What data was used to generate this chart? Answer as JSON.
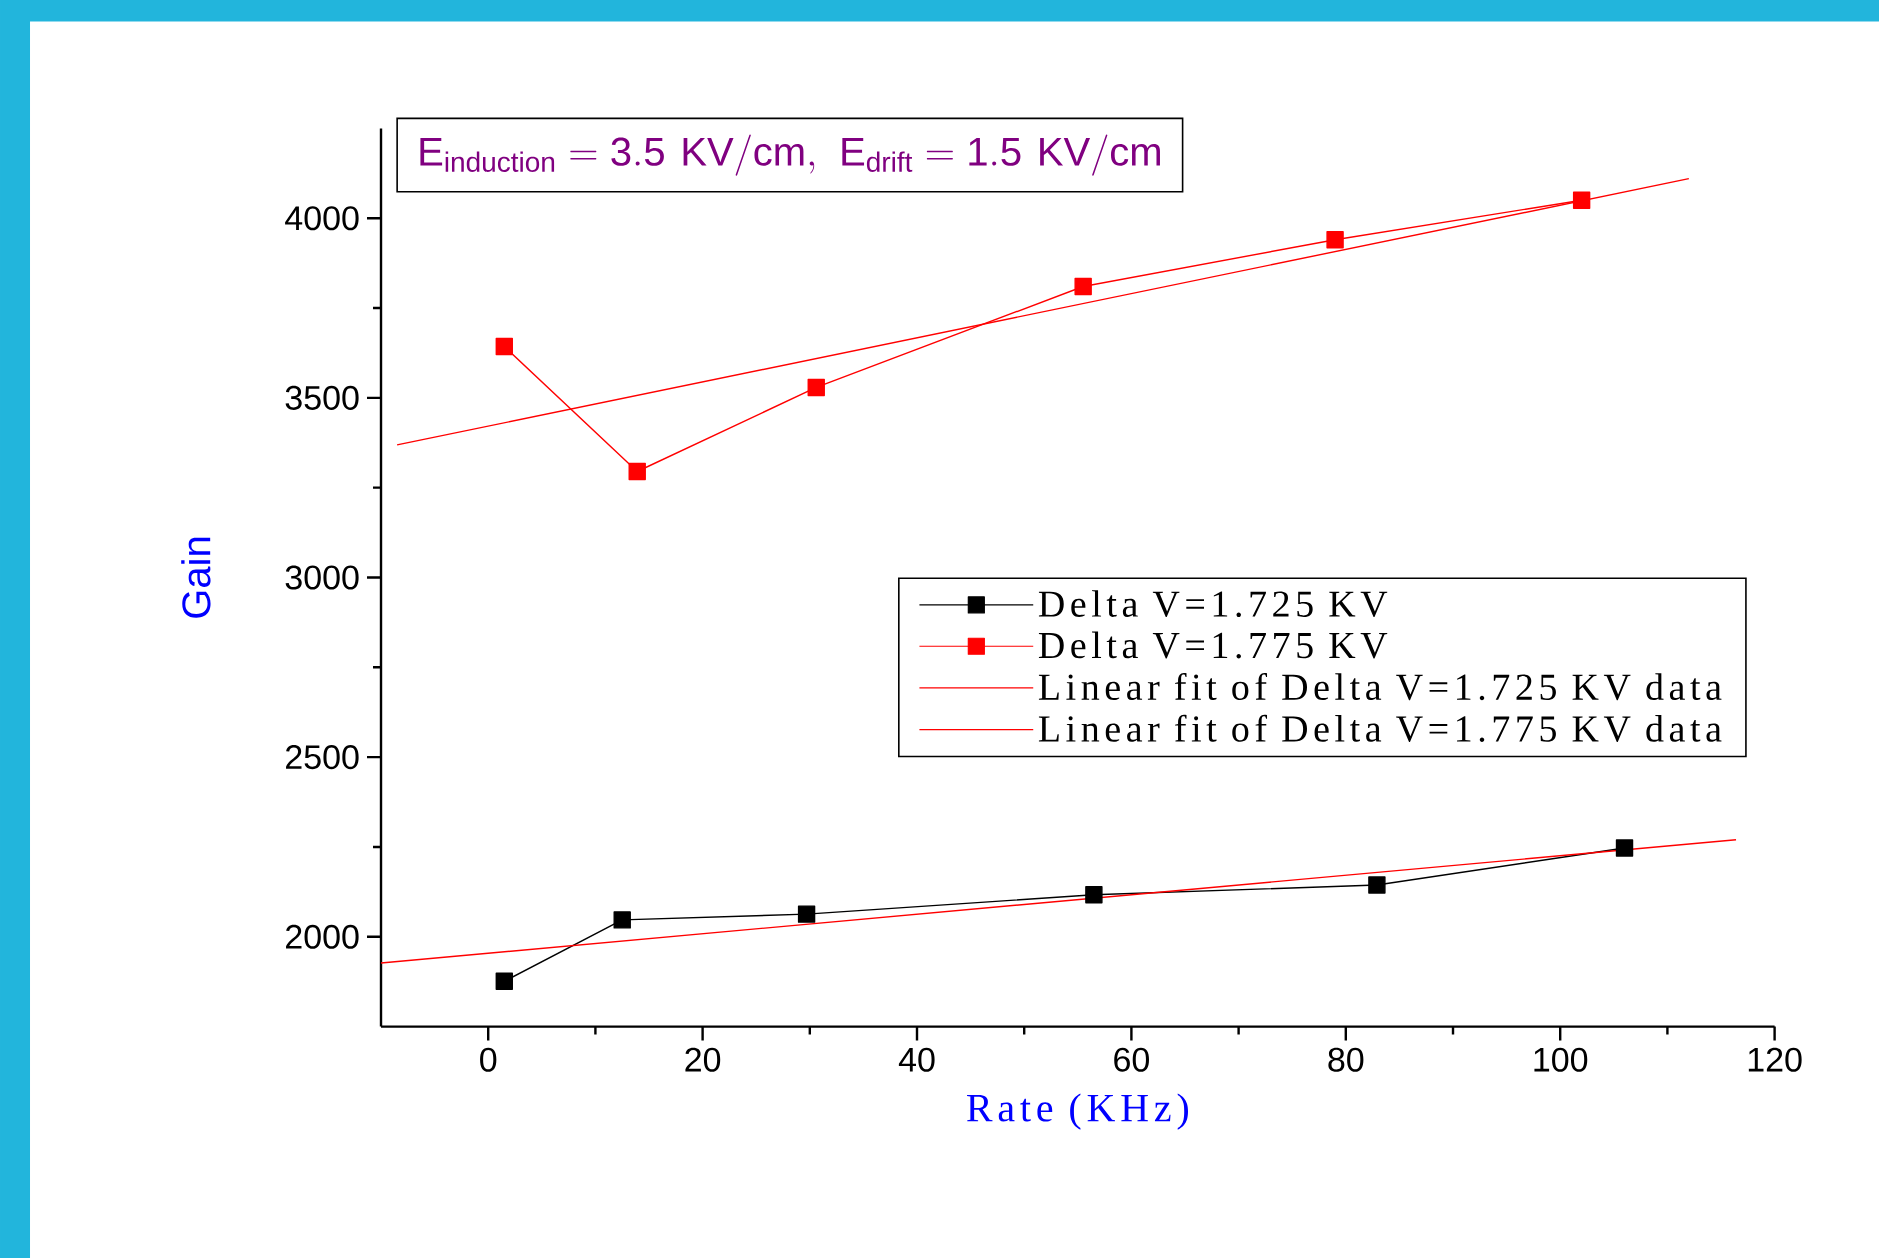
{
  "chart_data": {
    "type": "line",
    "xlabel": "Rate (KHz)",
    "ylabel": "Gain",
    "xlim": [
      -10,
      120
    ],
    "ylim": [
      1750,
      4250
    ],
    "xticks": [
      0,
      20,
      40,
      60,
      80,
      100,
      120
    ],
    "yticks": [
      2000,
      2500,
      3000,
      3500,
      4000
    ],
    "marker": "square",
    "legend": "right",
    "annotations": [
      "\\mathrm{E_{induction}=3.5\\ KV/cm,\\ E_{drift}=1.5\\ KV/cm}"
    ],
    "series": [
      {
        "name": "Delta V=1.725 KV",
        "color": "#000000",
        "x": [
          1.5,
          12.5,
          29.7,
          56.5,
          82.9,
          106
        ],
        "values": [
          1876,
          2047,
          2063,
          2117,
          2144,
          2247
        ]
      },
      {
        "name": "Delta V=1.775 KV",
        "color": "#ff0000",
        "x": [
          1.5,
          13.9,
          30.6,
          55.5,
          79,
          102
        ],
        "values": [
          3643,
          3295,
          3529,
          3810,
          3940,
          4050
        ]
      },
      {
        "name": "Linear fit of Delta V=1.725 KV data",
        "color": "#ff0000",
        "marker": "none",
        "x": [
          -10,
          116.4
        ],
        "values": [
          1927,
          2270
        ]
      },
      {
        "name": "Linear fit of Delta V=1.775 KV data",
        "color": "#ff0000",
        "marker": "none",
        "x": [
          -8.5,
          112
        ],
        "values": [
          3369,
          4110
        ]
      }
    ]
  }
}
